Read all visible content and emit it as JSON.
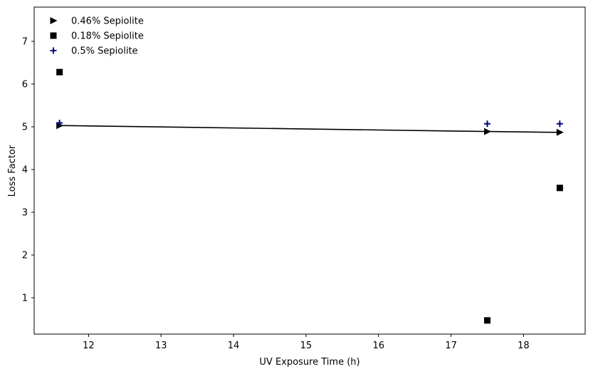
{
  "chart_data": {
    "type": "scatter",
    "title": "",
    "xlabel": "UV Exposure Time (h)",
    "ylabel": "Loss Factor",
    "xlim": [
      11.25,
      18.85
    ],
    "ylim": [
      0.15,
      7.8
    ],
    "xticks": [
      12,
      13,
      14,
      15,
      16,
      17,
      18
    ],
    "yticks": [
      1,
      2,
      3,
      4,
      5,
      6,
      7
    ],
    "grid": false,
    "legend_position": "top-left",
    "series": [
      {
        "name": "0.46% Sepiolite",
        "marker": "triangle-right",
        "color": "#000000",
        "line": true,
        "x": [
          11.6,
          17.5,
          18.5
        ],
        "y": [
          5.03,
          4.89,
          4.87
        ]
      },
      {
        "name": "0.18% Sepiolite",
        "marker": "square",
        "color": "#000000",
        "line": false,
        "x": [
          11.6,
          17.5,
          18.5
        ],
        "y": [
          6.28,
          0.47,
          3.57
        ]
      },
      {
        "name": "0.5% Sepiolite",
        "marker": "plus",
        "color": "#00007f",
        "line": false,
        "x": [
          11.6,
          17.5,
          18.5
        ],
        "y": [
          5.09,
          5.07,
          5.07
        ]
      }
    ]
  }
}
